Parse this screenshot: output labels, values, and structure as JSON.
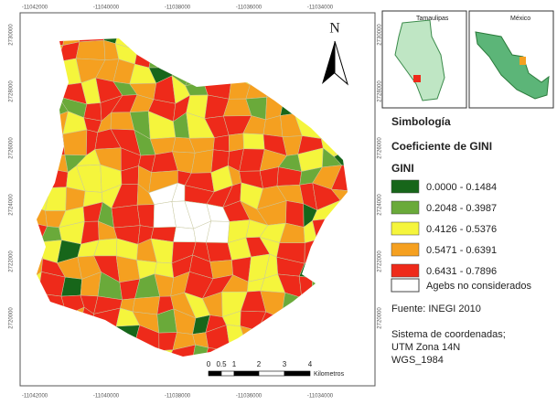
{
  "map": {
    "north": "N",
    "x_ticks": [
      "-11042000",
      "-11040000",
      "-11038000",
      "-11036000",
      "-11034000"
    ],
    "y_ticks": [
      "2730000",
      "2728000",
      "2726000",
      "2724000",
      "2722000",
      "2720000"
    ],
    "scale_bar": {
      "labels": [
        "0",
        "0.5",
        "1",
        "2",
        "3",
        "4"
      ],
      "unit": "Kilometros"
    }
  },
  "insets": {
    "state": "Tamaulipas",
    "country": "México"
  },
  "legend": {
    "heading": "Simbología",
    "title": "Coeficiente de GINI",
    "field": "GINI",
    "classes": [
      {
        "label": "0.0000 - 0.1484",
        "color": "#17661a"
      },
      {
        "label": "0.2048 - 0.3987",
        "color": "#6aaa3a"
      },
      {
        "label": "0.4126 - 0.5376",
        "color": "#f5f53c"
      },
      {
        "label": "0.5471 - 0.6391",
        "color": "#f5a020"
      },
      {
        "label": "0.6431 - 0.7896",
        "color": "#ee2a1a"
      }
    ],
    "excluded": "Agebs no considerados"
  },
  "source": "Fuente: INEGI 2010",
  "crs": [
    "Sistema de coordenadas;",
    "UTM Zona 14N",
    "WGS_1984"
  ]
}
